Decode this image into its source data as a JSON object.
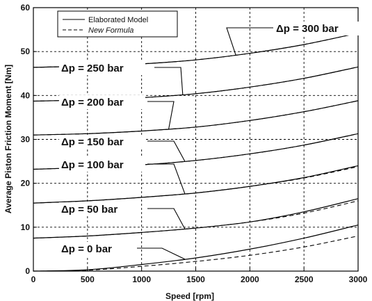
{
  "chart_data": {
    "type": "line",
    "xlabel": "Speed [rpm]",
    "ylabel": "Average Piston Friction Moment [Nm]",
    "xlim": [
      0,
      3000
    ],
    "ylim": [
      0,
      60
    ],
    "xticks": [
      0,
      500,
      1000,
      1500,
      2000,
      2500,
      3000
    ],
    "yticks": [
      0,
      10,
      20,
      30,
      40,
      50,
      60
    ],
    "grid": true,
    "legend_position": "top-left",
    "legend": [
      {
        "label": "Elaborated Model",
        "style": "solid"
      },
      {
        "label": "New Formula",
        "style": "dashed"
      }
    ],
    "x": [
      0,
      500,
      1000,
      1500,
      2000,
      2500,
      3000
    ],
    "series": [
      {
        "pressure": "0 bar",
        "elaborated": [
          0.0,
          0.3,
          1.5,
          3.0,
          5.0,
          7.5,
          10.5
        ],
        "formula": [
          0.0,
          0.2,
          1.1,
          2.2,
          3.6,
          5.5,
          8.0
        ]
      },
      {
        "pressure": "50 bar",
        "elaborated": [
          7.5,
          8.0,
          8.8,
          9.8,
          11.2,
          13.5,
          16.5
        ],
        "formula": [
          7.5,
          8.0,
          8.8,
          9.8,
          11.2,
          13.2,
          16.0
        ]
      },
      {
        "pressure": "100 bar",
        "elaborated": [
          15.5,
          16.0,
          16.8,
          17.8,
          19.3,
          21.3,
          24.0
        ],
        "formula": [
          15.5,
          16.0,
          16.8,
          17.8,
          19.3,
          21.2,
          23.8
        ]
      },
      {
        "pressure": "150 bar",
        "elaborated": [
          23.2,
          23.6,
          24.2,
          25.2,
          26.7,
          28.7,
          31.3
        ],
        "formula": [
          23.2,
          23.6,
          24.2,
          25.2,
          26.7,
          28.7,
          31.3
        ]
      },
      {
        "pressure": "200 bar",
        "elaborated": [
          31.0,
          31.3,
          31.9,
          32.8,
          34.3,
          36.3,
          38.8
        ],
        "formula": [
          31.0,
          31.3,
          31.9,
          32.8,
          34.3,
          36.3,
          38.8
        ]
      },
      {
        "pressure": "250 bar",
        "elaborated": [
          38.7,
          39.0,
          39.5,
          40.4,
          41.9,
          43.9,
          46.5
        ],
        "formula": [
          38.7,
          39.0,
          39.5,
          40.4,
          41.9,
          43.9,
          46.5
        ]
      },
      {
        "pressure": "300 bar",
        "elaborated": [
          46.4,
          46.7,
          47.2,
          48.1,
          49.6,
          51.6,
          54.2
        ],
        "formula": [
          46.4,
          46.7,
          47.2,
          48.1,
          49.6,
          51.6,
          54.2
        ]
      }
    ],
    "annotations": [
      {
        "text": "Δp = 0 bar",
        "target_pressure": "0 bar",
        "points_to_x": 1400
      },
      {
        "text": "Δp = 50 bar",
        "target_pressure": "50 bar",
        "points_to_x": 1400
      },
      {
        "text": "Δp = 100 bar",
        "target_pressure": "100 bar",
        "points_to_x": 1400
      },
      {
        "text": "Δp = 150 bar",
        "target_pressure": "150 bar",
        "points_to_x": 1400
      },
      {
        "text": "Δp = 200 bar",
        "target_pressure": "200 bar",
        "points_to_x": 1250
      },
      {
        "text": "Δp = 250 bar",
        "target_pressure": "250 bar",
        "points_to_x": 1380
      },
      {
        "text": "Δp = 300 bar",
        "target_pressure": "300 bar",
        "points_to_x": 1870
      }
    ]
  }
}
